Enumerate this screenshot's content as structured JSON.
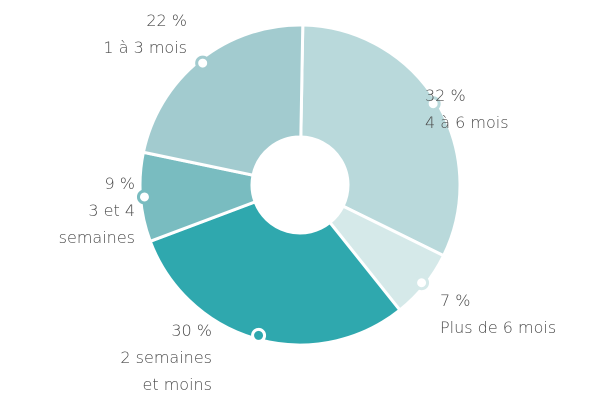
{
  "chart_data": {
    "type": "donut",
    "categories": [
      "4 à 6 mois",
      "Plus de 6 mois",
      "2 semaines\net moins",
      "3 et 4\nsemaines",
      "1 à 3 mois"
    ],
    "values": [
      32,
      7,
      30,
      9,
      22
    ],
    "value_labels": [
      "32 %",
      "7 %",
      "30 %",
      "9 %",
      "22 %"
    ],
    "colors": [
      "#b9d9db",
      "#d5e9e9",
      "#2fa8ae",
      "#79bcc0",
      "#a2cbcf"
    ]
  }
}
